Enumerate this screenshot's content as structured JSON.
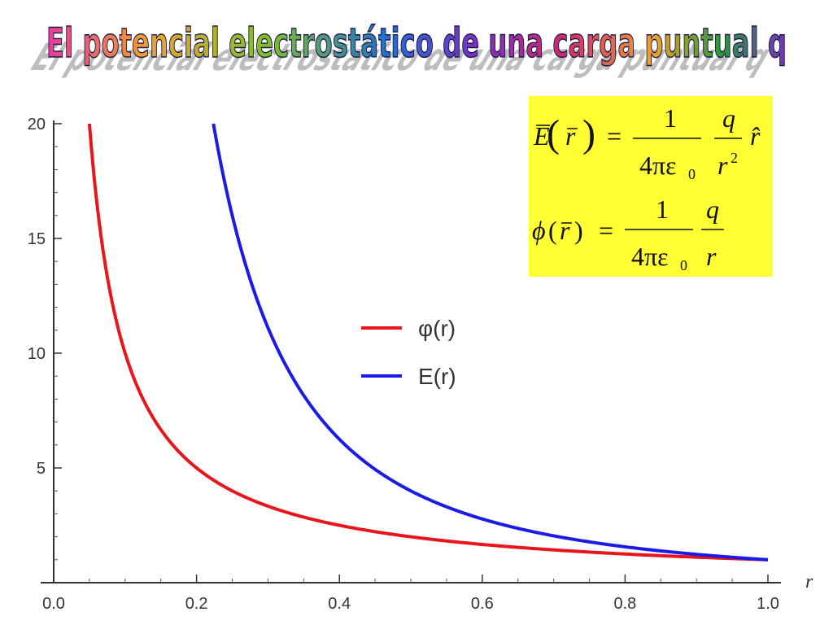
{
  "slide": {
    "title": "El potencial electrostático de una carga puntual q"
  },
  "formulas": {
    "field": {
      "E": "E",
      "r": "r",
      "one": "1",
      "den": "4πε",
      "sub0": "0",
      "q": "q",
      "r2": "r",
      "exp": "2",
      "rhat": "r̂",
      "eq": "="
    },
    "potential": {
      "phi": "ϕ",
      "r": "r",
      "one": "1",
      "den": "4πε",
      "sub0": "0",
      "q": "q",
      "rden": "r",
      "eq": "="
    }
  },
  "chart_data": {
    "type": "line",
    "title": "",
    "xlabel": "r",
    "ylabel": "",
    "xlim": [
      0,
      1.0
    ],
    "ylim": [
      1,
      20
    ],
    "x_ticks": [
      "0.0",
      "0.2",
      "0.4",
      "0.6",
      "0.8",
      "1.0"
    ],
    "y_ticks": [
      "5",
      "10",
      "15",
      "20"
    ],
    "series": [
      {
        "name": "φ(r)",
        "color": "#e8151b",
        "function": "1/r",
        "x": [
          0.05,
          0.06,
          0.08,
          0.1,
          0.15,
          0.2,
          0.3,
          0.4,
          0.5,
          0.6,
          0.7,
          0.8,
          0.9,
          1.0
        ],
        "y": [
          20,
          16.67,
          12.5,
          10,
          6.67,
          5,
          3.33,
          2.5,
          2,
          1.67,
          1.43,
          1.25,
          1.11,
          1
        ]
      },
      {
        "name": "E(r)",
        "color": "#1b1be8",
        "function": "1/r^2",
        "x": [
          0.2236,
          0.25,
          0.3,
          0.35,
          0.4,
          0.5,
          0.6,
          0.7,
          0.8,
          0.9,
          1.0
        ],
        "y": [
          20,
          16,
          11.11,
          8.16,
          6.25,
          4,
          2.78,
          2.04,
          1.56,
          1.23,
          1
        ]
      }
    ],
    "legend_position": "center-right",
    "grid": false
  }
}
